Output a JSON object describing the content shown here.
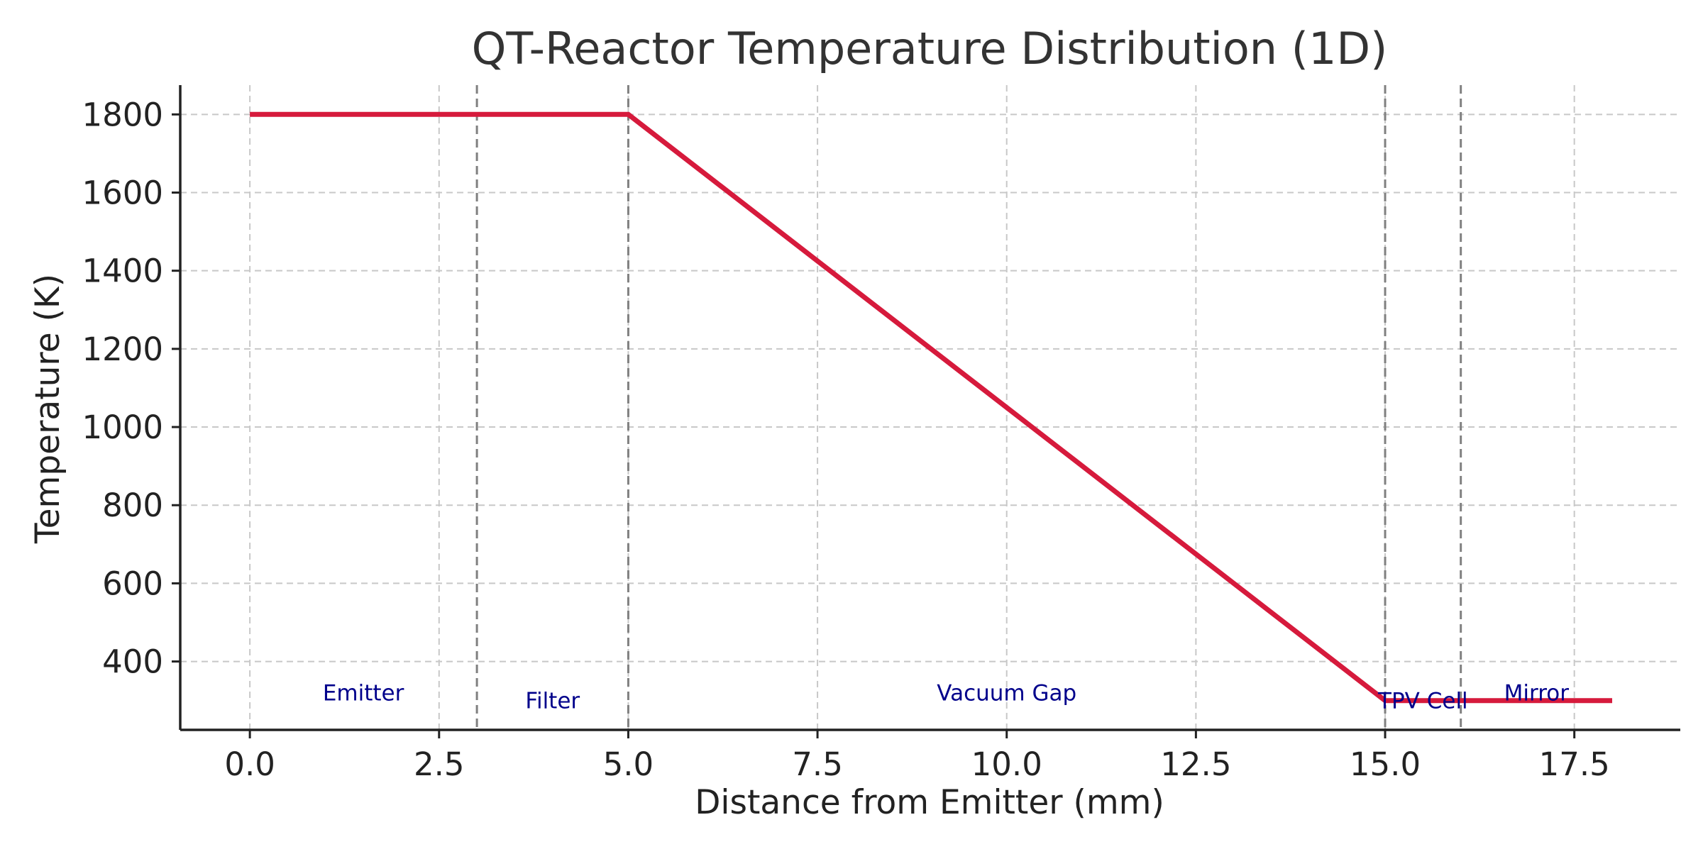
{
  "chart_data": {
    "type": "line",
    "title": "QT-Reactor Temperature Distribution (1D)",
    "xlabel": "Distance from Emitter (mm)",
    "ylabel": "Temperature (K)",
    "xlim": [
      -0.92,
      18.9
    ],
    "ylim": [
      225,
      1875
    ],
    "x_ticks": [
      0.0,
      2.5,
      5.0,
      7.5,
      10.0,
      12.5,
      15.0,
      17.5
    ],
    "x_tick_labels": [
      "0.0",
      "2.5",
      "5.0",
      "7.5",
      "10.0",
      "12.5",
      "15.0",
      "17.5"
    ],
    "y_ticks": [
      400,
      600,
      800,
      1000,
      1200,
      1400,
      1600,
      1800
    ],
    "y_tick_labels": [
      "400",
      "600",
      "800",
      "1000",
      "1200",
      "1400",
      "1600",
      "1800"
    ],
    "grid": true,
    "series": [
      {
        "color": "#d61a3c",
        "x": [
          0,
          5,
          15,
          18
        ],
        "y": [
          1800,
          1800,
          300,
          300
        ]
      }
    ],
    "boundaries": [
      3,
      5,
      15,
      16
    ],
    "boundary_color": "#808080",
    "region_label_color": "#00008b",
    "regions": [
      {
        "label": "Emitter",
        "x": 1.5,
        "y": 320
      },
      {
        "label": "Filter",
        "x": 4.0,
        "y": 300
      },
      {
        "label": "Vacuum Gap",
        "x": 10.0,
        "y": 320
      },
      {
        "label": "TPV Cell",
        "x": 15.5,
        "y": 300
      },
      {
        "label": "Mirror",
        "x": 17.0,
        "y": 320
      }
    ]
  }
}
